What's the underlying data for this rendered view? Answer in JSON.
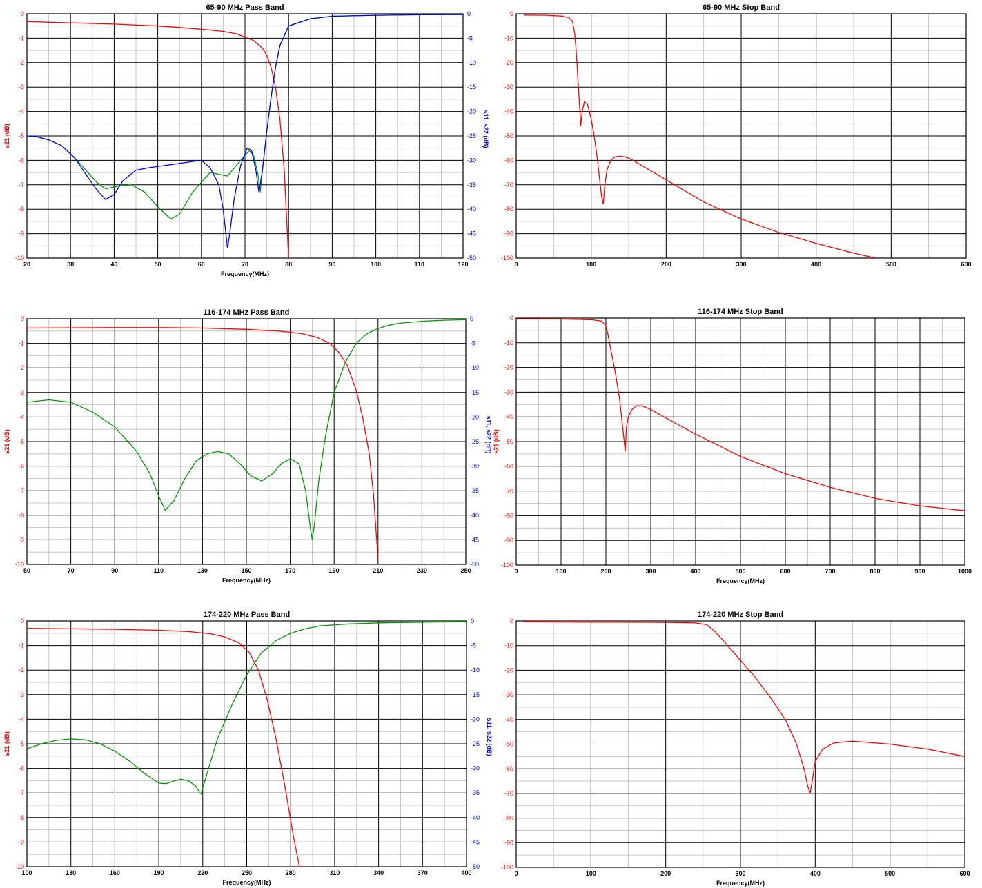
{
  "colors": {
    "s21": "#ff0000",
    "s11": "#0000ff",
    "s22": "#009900",
    "left_axis": "#ff0000",
    "right_axis": "#0000ff",
    "major_grid": "#000000",
    "minor_grid": "#bbbbbb"
  },
  "chart_data": [
    {
      "type": "line",
      "title": "65-90 MHz Pass Band",
      "xlabel": "Frequency(MHz)",
      "ylabel": "s21 (dB)",
      "y2label": "s11, s22 (dB)",
      "xlim": [
        20,
        120
      ],
      "ylim": [
        -10,
        0
      ],
      "y2lim": [
        -50,
        0
      ],
      "xticks": [
        20,
        30,
        40,
        50,
        60,
        70,
        80,
        90,
        100,
        110,
        120
      ],
      "yticks": [
        0,
        -1,
        -2,
        -3,
        -4,
        -5,
        -6,
        -7,
        -8,
        -9,
        -10
      ],
      "y2ticks": [
        0,
        -5,
        -10,
        -15,
        -20,
        -25,
        -30,
        -35,
        -40,
        -45,
        -50
      ],
      "grid": true,
      "series": [
        {
          "key": "s21",
          "axis": "left",
          "x": [
            20,
            30,
            40,
            50,
            55,
            60,
            65,
            68,
            70,
            72,
            74,
            75,
            76,
            77,
            78,
            79,
            80
          ],
          "y": [
            -0.32,
            -0.37,
            -0.42,
            -0.5,
            -0.56,
            -0.63,
            -0.72,
            -0.82,
            -0.95,
            -1.1,
            -1.4,
            -1.7,
            -2.2,
            -3.0,
            -4.3,
            -6.4,
            -10
          ]
        },
        {
          "key": "s22",
          "axis": "right",
          "x": [
            20,
            22,
            25,
            28,
            32,
            36,
            38,
            41,
            44,
            47,
            50,
            53,
            55,
            58,
            62,
            66,
            69,
            71,
            72,
            73,
            73.5,
            74,
            75,
            76,
            77,
            78,
            80,
            85,
            90,
            100,
            110,
            120
          ],
          "y": [
            -25,
            -25.1,
            -25.8,
            -27,
            -30.5,
            -34.5,
            -35.8,
            -35.3,
            -35,
            -36.5,
            -39.5,
            -42,
            -41,
            -36.5,
            -32.5,
            -33.2,
            -30,
            -28,
            -29,
            -33,
            -36.5,
            -32,
            -24,
            -17,
            -11,
            -6.5,
            -2.5,
            -1.0,
            -0.5,
            -0.3,
            -0.2,
            -0.15
          ]
        },
        {
          "key": "s11",
          "axis": "right",
          "x": [
            20,
            22,
            25,
            28,
            31,
            34,
            36,
            38,
            40,
            42,
            45,
            48,
            52,
            56,
            60,
            62,
            64,
            65,
            66,
            66.5,
            67.5,
            69,
            70.5,
            71.5,
            72.5,
            73.2,
            74,
            75,
            76,
            77,
            78,
            80,
            85,
            90,
            100,
            110,
            120
          ],
          "y": [
            -25,
            -25.1,
            -25.8,
            -27,
            -29.5,
            -33.5,
            -36,
            -38,
            -37,
            -34.2,
            -32,
            -31.5,
            -31,
            -30.5,
            -30,
            -31.5,
            -35,
            -40,
            -48,
            -45,
            -38,
            -31,
            -27.5,
            -28,
            -32,
            -36.5,
            -32,
            -24,
            -17,
            -11,
            -6.5,
            -2.5,
            -1.0,
            -0.5,
            -0.3,
            -0.2,
            -0.15
          ]
        }
      ]
    },
    {
      "type": "line",
      "title": "65-90 MHz Stop Band",
      "xlabel": "",
      "ylabel": "",
      "xlim": [
        0,
        600
      ],
      "ylim": [
        -100,
        0
      ],
      "xticks": [
        0,
        100,
        200,
        300,
        400,
        500,
        600
      ],
      "yticks": [
        0,
        -10,
        -20,
        -30,
        -40,
        -50,
        -60,
        -70,
        -80,
        -90,
        -100
      ],
      "grid": true,
      "series": [
        {
          "key": "s21",
          "axis": "left",
          "x": [
            10,
            40,
            60,
            70,
            75,
            78,
            80,
            82,
            84,
            86,
            88,
            91,
            95,
            100,
            105,
            108,
            111,
            114,
            116,
            118,
            121,
            126,
            132,
            140,
            150,
            170,
            200,
            250,
            300,
            350,
            400,
            450,
            480
          ],
          "y": [
            -0.5,
            -0.6,
            -0.9,
            -1.5,
            -3,
            -8,
            -15,
            -25,
            -35,
            -46,
            -40,
            -36,
            -37,
            -43,
            -52,
            -59,
            -67,
            -75,
            -78,
            -71,
            -64,
            -60,
            -58.5,
            -58.3,
            -59,
            -62.5,
            -68,
            -77,
            -84,
            -89.5,
            -94,
            -98,
            -100
          ]
        }
      ]
    },
    {
      "type": "line",
      "title": "116-174 MHz Pass Band",
      "xlabel": "Frequency(MHz)",
      "ylabel": "s21 (dB)",
      "y2label": "s11, s22 (dB)",
      "xlim": [
        50,
        250
      ],
      "ylim": [
        -10,
        0
      ],
      "y2lim": [
        -50,
        0
      ],
      "xticks": [
        50,
        70,
        90,
        110,
        130,
        150,
        170,
        190,
        210,
        230,
        250
      ],
      "yticks": [
        0,
        -1,
        -2,
        -3,
        -4,
        -5,
        -6,
        -7,
        -8,
        -9,
        -10
      ],
      "y2ticks": [
        0,
        -5,
        -10,
        -15,
        -20,
        -25,
        -30,
        -35,
        -40,
        -45,
        -50
      ],
      "grid": true,
      "series": [
        {
          "key": "s21",
          "axis": "left",
          "x": [
            50,
            70,
            90,
            110,
            130,
            150,
            165,
            175,
            182,
            188,
            192,
            196,
            200,
            203,
            206,
            208,
            210
          ],
          "y": [
            -0.38,
            -0.37,
            -0.36,
            -0.36,
            -0.38,
            -0.43,
            -0.5,
            -0.6,
            -0.75,
            -1.0,
            -1.35,
            -1.9,
            -2.9,
            -4.0,
            -5.5,
            -7.2,
            -9.8
          ]
        },
        {
          "key": "s22",
          "axis": "right",
          "x": [
            50,
            60,
            70,
            80,
            90,
            100,
            106,
            110,
            113,
            117,
            122,
            127,
            132,
            137,
            142,
            147,
            152,
            157,
            162,
            166,
            170,
            174,
            177,
            179,
            180,
            181,
            183,
            186,
            190,
            195,
            200,
            205,
            210,
            215,
            220,
            230,
            240,
            250
          ],
          "y": [
            -17,
            -16.5,
            -17,
            -19,
            -22,
            -27,
            -31.5,
            -36,
            -39,
            -37,
            -32.5,
            -29,
            -27.5,
            -27,
            -27.5,
            -29.5,
            -32,
            -33,
            -31.5,
            -29.5,
            -28.5,
            -29.5,
            -35,
            -42,
            -45,
            -42,
            -33,
            -24,
            -15,
            -9,
            -5,
            -3,
            -2,
            -1.3,
            -0.9,
            -0.5,
            -0.3,
            -0.2
          ]
        }
      ]
    },
    {
      "type": "line",
      "title": "116-174 MHz Stop Band",
      "xlabel": "Frequency(MHz)",
      "ylabel": "s21 (dB)",
      "xlim": [
        0,
        1000
      ],
      "ylim": [
        -100,
        0
      ],
      "xticks": [
        0,
        100,
        200,
        300,
        400,
        500,
        600,
        700,
        800,
        900,
        1000
      ],
      "yticks": [
        0,
        -10,
        -20,
        -30,
        -40,
        -50,
        -60,
        -70,
        -80,
        -90,
        -100
      ],
      "grid": true,
      "series": [
        {
          "key": "s21",
          "axis": "left",
          "x": [
            0,
            100,
            170,
            190,
            200,
            205,
            210,
            220,
            230,
            238,
            243,
            246,
            250,
            258,
            268,
            280,
            300,
            350,
            400,
            500,
            600,
            700,
            800,
            900,
            1000
          ],
          "y": [
            -0.3,
            -0.4,
            -0.7,
            -1.2,
            -3,
            -7,
            -12,
            -21,
            -32,
            -45,
            -54,
            -44,
            -40,
            -37,
            -35.5,
            -35.5,
            -37,
            -42,
            -47,
            -56,
            -63,
            -68.5,
            -73,
            -76,
            -78
          ]
        }
      ]
    },
    {
      "type": "line",
      "title": "174-220 MHz Pass Band",
      "xlabel": "Frequency(MHz)",
      "ylabel": "s21 (dB)",
      "y2label": "s11, s22 (dB)",
      "xlim": [
        100,
        400
      ],
      "ylim": [
        -10,
        0
      ],
      "y2lim": [
        -50,
        0
      ],
      "xticks": [
        100,
        130,
        160,
        190,
        220,
        250,
        280,
        310,
        340,
        370,
        400
      ],
      "yticks": [
        0,
        -1,
        -2,
        -3,
        -4,
        -5,
        -6,
        -7,
        -8,
        -9,
        -10
      ],
      "y2ticks": [
        0,
        -5,
        -10,
        -15,
        -20,
        -25,
        -30,
        -35,
        -40,
        -45,
        -50
      ],
      "grid": true,
      "series": [
        {
          "key": "s21",
          "axis": "left",
          "x": [
            100,
            130,
            160,
            190,
            210,
            225,
            235,
            245,
            252,
            258,
            264,
            270,
            276,
            282,
            286
          ],
          "y": [
            -0.3,
            -0.32,
            -0.34,
            -0.38,
            -0.43,
            -0.52,
            -0.65,
            -0.9,
            -1.3,
            -2.0,
            -3.2,
            -4.8,
            -6.7,
            -8.8,
            -10
          ]
        },
        {
          "key": "s22",
          "axis": "right",
          "x": [
            100,
            110,
            120,
            130,
            140,
            150,
            160,
            170,
            180,
            190,
            195,
            200,
            205,
            210,
            215,
            218,
            219,
            220,
            225,
            230,
            240,
            250,
            260,
            270,
            280,
            290,
            300,
            320,
            340,
            370,
            400
          ],
          "y": [
            -26,
            -25,
            -24.3,
            -24,
            -24.2,
            -25,
            -26.5,
            -28.5,
            -31,
            -33,
            -33.1,
            -32.6,
            -32.2,
            -32.5,
            -33.5,
            -35,
            -35.2,
            -34,
            -29,
            -24,
            -17,
            -11,
            -6.5,
            -4,
            -2.5,
            -1.6,
            -1.0,
            -0.6,
            -0.4,
            -0.25,
            -0.2
          ]
        }
      ]
    },
    {
      "type": "line",
      "title": "174-220 MHz Stop Band",
      "xlabel": "Frequency(MHz)",
      "ylabel": "",
      "xlim": [
        0,
        600
      ],
      "ylim": [
        -100,
        0
      ],
      "xticks": [
        0,
        100,
        200,
        300,
        400,
        500,
        600
      ],
      "yticks": [
        0,
        -10,
        -20,
        -30,
        -40,
        -50,
        -60,
        -70,
        -80,
        -90,
        -100
      ],
      "grid": true,
      "series": [
        {
          "key": "s21",
          "axis": "left",
          "x": [
            10,
            100,
            200,
            240,
            255,
            265,
            280,
            300,
            320,
            340,
            360,
            375,
            385,
            390,
            393,
            396,
            400,
            410,
            425,
            450,
            500,
            550,
            600
          ],
          "y": [
            -0.4,
            -0.5,
            -0.6,
            -0.8,
            -1.5,
            -4,
            -9,
            -16,
            -23,
            -31,
            -40,
            -50,
            -60,
            -67,
            -70,
            -65,
            -57,
            -52,
            -49.5,
            -48.8,
            -50,
            -52,
            -55
          ]
        }
      ]
    }
  ]
}
